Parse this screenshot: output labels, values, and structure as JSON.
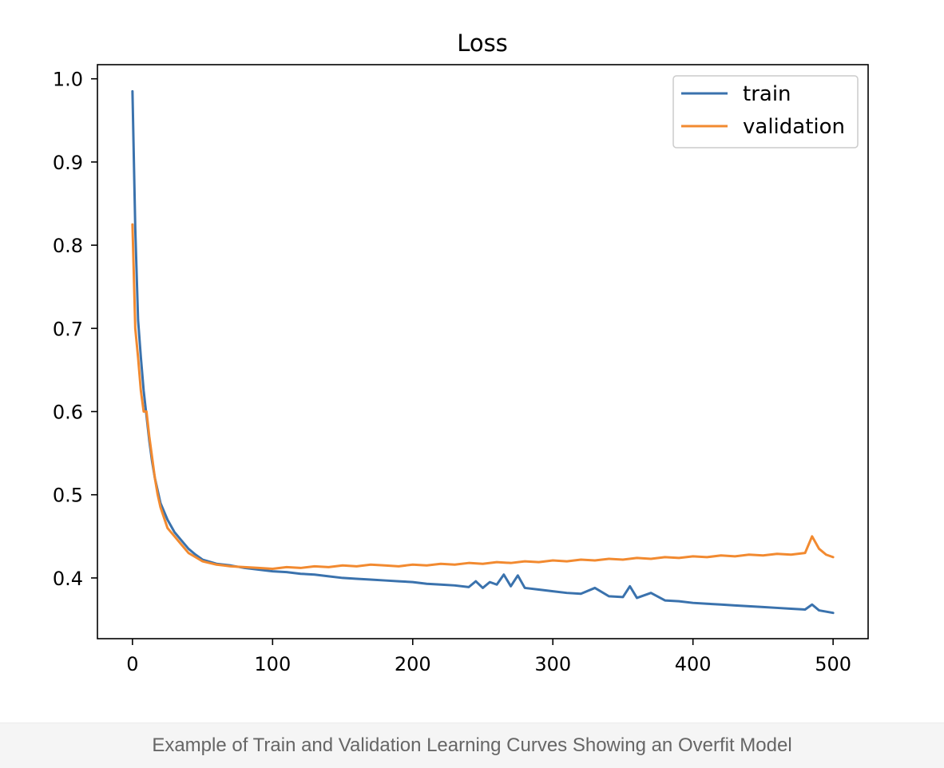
{
  "caption": "Example of Train and Validation Learning Curves Showing an Overfit Model",
  "chart_data": {
    "type": "line",
    "title": "Loss",
    "xlabel": "",
    "ylabel": "",
    "xlim": [
      -25,
      525
    ],
    "ylim": [
      0.327,
      1.017
    ],
    "xticks": [
      0,
      100,
      200,
      300,
      400,
      500
    ],
    "yticks": [
      0.4,
      0.5,
      0.6,
      0.7,
      0.8,
      0.9,
      1.0
    ],
    "ytick_labels": [
      "0.4",
      "0.5",
      "0.6",
      "0.7",
      "0.8",
      "0.9",
      "1.0"
    ],
    "grid": false,
    "legend_position": "upper-right",
    "series": [
      {
        "name": "train",
        "color": "#3a72ad",
        "x": [
          0,
          2,
          4,
          6,
          8,
          10,
          12,
          14,
          16,
          18,
          20,
          25,
          30,
          35,
          40,
          45,
          50,
          60,
          70,
          80,
          90,
          100,
          110,
          120,
          130,
          140,
          150,
          160,
          170,
          180,
          190,
          200,
          210,
          220,
          230,
          240,
          245,
          250,
          255,
          260,
          265,
          270,
          275,
          280,
          290,
          300,
          310,
          320,
          330,
          340,
          350,
          355,
          360,
          370,
          380,
          390,
          400,
          410,
          420,
          430,
          440,
          450,
          460,
          470,
          480,
          485,
          490,
          500
        ],
        "values": [
          0.985,
          0.82,
          0.71,
          0.665,
          0.625,
          0.595,
          0.565,
          0.54,
          0.52,
          0.505,
          0.49,
          0.47,
          0.455,
          0.445,
          0.435,
          0.428,
          0.422,
          0.417,
          0.415,
          0.412,
          0.41,
          0.408,
          0.407,
          0.405,
          0.404,
          0.402,
          0.4,
          0.399,
          0.398,
          0.397,
          0.396,
          0.395,
          0.393,
          0.392,
          0.391,
          0.389,
          0.396,
          0.388,
          0.395,
          0.392,
          0.404,
          0.39,
          0.403,
          0.388,
          0.386,
          0.384,
          0.382,
          0.381,
          0.388,
          0.378,
          0.377,
          0.39,
          0.376,
          0.382,
          0.373,
          0.372,
          0.37,
          0.369,
          0.368,
          0.367,
          0.366,
          0.365,
          0.364,
          0.363,
          0.362,
          0.368,
          0.361,
          0.358
        ]
      },
      {
        "name": "validation",
        "color": "#f28a30",
        "x": [
          0,
          2,
          4,
          6,
          8,
          10,
          12,
          14,
          16,
          18,
          20,
          25,
          30,
          35,
          40,
          45,
          50,
          55,
          60,
          65,
          70,
          80,
          90,
          100,
          110,
          120,
          130,
          140,
          150,
          160,
          170,
          180,
          190,
          200,
          210,
          220,
          230,
          240,
          250,
          260,
          270,
          280,
          290,
          300,
          310,
          320,
          330,
          340,
          350,
          360,
          370,
          380,
          390,
          400,
          410,
          420,
          430,
          440,
          450,
          460,
          470,
          480,
          485,
          490,
          495,
          500
        ],
        "values": [
          0.825,
          0.7,
          0.665,
          0.625,
          0.6,
          0.6,
          0.57,
          0.545,
          0.52,
          0.5,
          0.485,
          0.46,
          0.45,
          0.44,
          0.43,
          0.425,
          0.42,
          0.418,
          0.416,
          0.415,
          0.414,
          0.413,
          0.412,
          0.411,
          0.413,
          0.412,
          0.414,
          0.413,
          0.415,
          0.414,
          0.416,
          0.415,
          0.414,
          0.416,
          0.415,
          0.417,
          0.416,
          0.418,
          0.417,
          0.419,
          0.418,
          0.42,
          0.419,
          0.421,
          0.42,
          0.422,
          0.421,
          0.423,
          0.422,
          0.424,
          0.423,
          0.425,
          0.424,
          0.426,
          0.425,
          0.427,
          0.426,
          0.428,
          0.427,
          0.429,
          0.428,
          0.43,
          0.45,
          0.435,
          0.428,
          0.425
        ]
      }
    ]
  }
}
